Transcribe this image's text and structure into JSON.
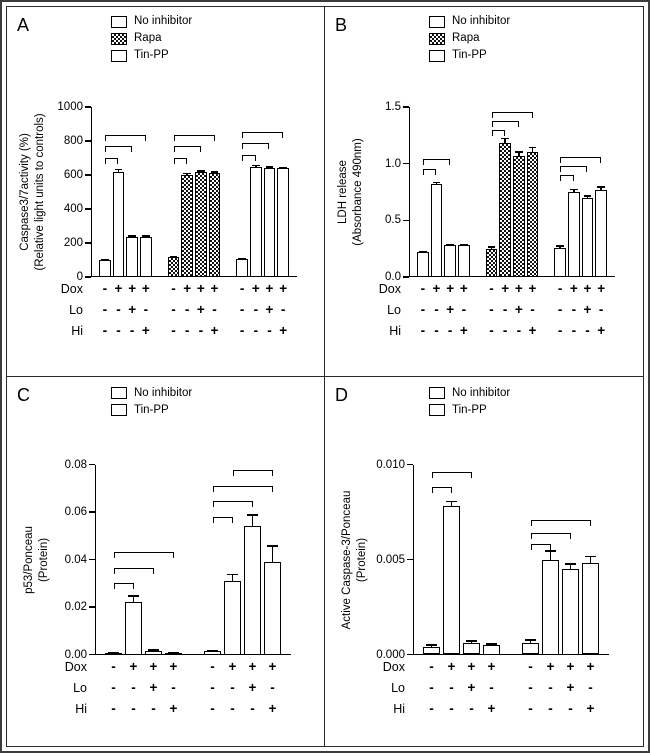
{
  "chart_data": [
    {
      "type": "bar",
      "panel": "A",
      "ylabel": "Caspase3/7activity (%)",
      "ylabel2": "(Relative light units to controls)",
      "ylim": [
        0,
        1000
      ],
      "yticks": [
        0,
        200,
        400,
        600,
        800,
        1000
      ],
      "ytick_labels": [
        "0",
        "200",
        "400",
        "600",
        "800",
        "1000"
      ],
      "legend": [
        {
          "label": "No inhibitor",
          "pattern": "white"
        },
        {
          "label": "Rapa",
          "pattern": "checker"
        },
        {
          "label": "Tin-PP",
          "pattern": "diagonal"
        }
      ],
      "groups": [
        {
          "name": "No inhibitor",
          "pattern": "white",
          "values": [
            100,
            620,
            235,
            235
          ],
          "errors": [
            8,
            18,
            10,
            10
          ]
        },
        {
          "name": "Rapa",
          "pattern": "checker",
          "values": [
            115,
            598,
            615,
            610
          ],
          "errors": [
            8,
            15,
            12,
            12
          ]
        },
        {
          "name": "Tin-PP",
          "pattern": "diagonal",
          "values": [
            105,
            650,
            643,
            640
          ],
          "errors": [
            6,
            10,
            8,
            8
          ]
        }
      ],
      "x_rows": [
        {
          "label": "Dox",
          "symbols": [
            "-",
            "+",
            "+",
            "+",
            "-",
            "+",
            "+",
            "+",
            "-",
            "+",
            "+",
            "+"
          ]
        },
        {
          "label": "Lo",
          "symbols": [
            "-",
            "-",
            "+",
            "-",
            "-",
            "-",
            "+",
            "-",
            "-",
            "-",
            "+",
            "-"
          ]
        },
        {
          "label": "Hi",
          "symbols": [
            "-",
            "-",
            "-",
            "+",
            "-",
            "-",
            "-",
            "+",
            "-",
            "-",
            "-",
            "+"
          ]
        }
      ],
      "brackets": [
        {
          "from": 0,
          "to": 1,
          "y": 700
        },
        {
          "from": 0,
          "to": 2,
          "y": 768
        },
        {
          "from": 0,
          "to": 3,
          "y": 836
        },
        {
          "from": 4,
          "to": 5,
          "y": 700
        },
        {
          "from": 4,
          "to": 6,
          "y": 768
        },
        {
          "from": 4,
          "to": 7,
          "y": 836
        },
        {
          "from": 8,
          "to": 9,
          "y": 718
        },
        {
          "from": 8,
          "to": 10,
          "y": 786
        },
        {
          "from": 8,
          "to": 11,
          "y": 854
        }
      ]
    },
    {
      "type": "bar",
      "panel": "B",
      "ylabel": "LDH release",
      "ylabel2": "(Absorbance 490nm)",
      "ylim": [
        0,
        1.5
      ],
      "yticks": [
        0,
        0.5,
        1.0,
        1.5
      ],
      "ytick_labels": [
        "0.0",
        "0.5",
        "1.0",
        "1.5"
      ],
      "legend": [
        {
          "label": "No inhibitor",
          "pattern": "white"
        },
        {
          "label": "Rapa",
          "pattern": "checker"
        },
        {
          "label": "Tin-PP",
          "pattern": "diagonal"
        }
      ],
      "groups": [
        {
          "name": "No inhibitor",
          "pattern": "white",
          "values": [
            0.22,
            0.82,
            0.28,
            0.28
          ],
          "errors": [
            0.01,
            0.02,
            0.015,
            0.015
          ]
        },
        {
          "name": "Rapa",
          "pattern": "checker",
          "values": [
            0.25,
            1.18,
            1.07,
            1.1
          ],
          "errors": [
            0.02,
            0.05,
            0.04,
            0.05
          ]
        },
        {
          "name": "Tin-PP",
          "pattern": "diagonal",
          "values": [
            0.26,
            0.75,
            0.7,
            0.77
          ],
          "errors": [
            0.02,
            0.03,
            0.02,
            0.03
          ]
        }
      ],
      "x_rows": [
        {
          "label": "Dox",
          "symbols": [
            "-",
            "+",
            "+",
            "+",
            "-",
            "+",
            "+",
            "+",
            "-",
            "+",
            "+",
            "+"
          ]
        },
        {
          "label": "Lo",
          "symbols": [
            "-",
            "-",
            "+",
            "-",
            "-",
            "-",
            "+",
            "-",
            "-",
            "-",
            "+",
            "-"
          ]
        },
        {
          "label": "Hi",
          "symbols": [
            "-",
            "-",
            "-",
            "+",
            "-",
            "-",
            "-",
            "+",
            "-",
            "-",
            "-",
            "+"
          ]
        }
      ],
      "brackets": [
        {
          "from": 0,
          "to": 1,
          "y": 0.95
        },
        {
          "from": 0,
          "to": 2,
          "y": 1.04
        },
        {
          "from": 4,
          "to": 5,
          "y": 1.3
        },
        {
          "from": 4,
          "to": 6,
          "y": 1.38
        },
        {
          "from": 4,
          "to": 7,
          "y": 1.46
        },
        {
          "from": 8,
          "to": 9,
          "y": 0.9
        },
        {
          "from": 8,
          "to": 10,
          "y": 0.98
        },
        {
          "from": 8,
          "to": 11,
          "y": 1.06
        }
      ]
    },
    {
      "type": "bar",
      "panel": "C",
      "ylabel": "p53/Ponceau",
      "ylabel2": "(Protein)",
      "ylim": [
        0,
        0.08
      ],
      "yticks": [
        0,
        0.02,
        0.04,
        0.06,
        0.08
      ],
      "ytick_labels": [
        "0.00",
        "0.02",
        "0.04",
        "0.06",
        "0.08"
      ],
      "legend": [
        {
          "label": "No inhibitor",
          "pattern": "white"
        },
        {
          "label": "Tin-PP",
          "pattern": "diagonal"
        }
      ],
      "groups": [
        {
          "name": "No inhibitor",
          "pattern": "white",
          "values": [
            0.0006,
            0.022,
            0.0015,
            0.0008
          ],
          "errors": [
            0.0003,
            0.003,
            0.0008,
            0.0004
          ]
        },
        {
          "name": "Tin-PP",
          "pattern": "diagonal",
          "values": [
            0.0015,
            0.031,
            0.054,
            0.039
          ],
          "errors": [
            0.0005,
            0.003,
            0.005,
            0.007
          ]
        }
      ],
      "x_rows": [
        {
          "label": "Dox",
          "symbols": [
            "-",
            "+",
            "+",
            "+",
            "-",
            "+",
            "+",
            "+"
          ]
        },
        {
          "label": "Lo",
          "symbols": [
            "-",
            "-",
            "+",
            "-",
            "-",
            "-",
            "+",
            "-"
          ]
        },
        {
          "label": "Hi",
          "symbols": [
            "-",
            "-",
            "-",
            "+",
            "-",
            "-",
            "-",
            "+"
          ]
        }
      ],
      "brackets": [
        {
          "from": 0,
          "to": 1,
          "y": 0.03
        },
        {
          "from": 0,
          "to": 2,
          "y": 0.0365
        },
        {
          "from": 0,
          "to": 3,
          "y": 0.043
        },
        {
          "from": 4,
          "to": 5,
          "y": 0.058
        },
        {
          "from": 4,
          "to": 6,
          "y": 0.0645
        },
        {
          "from": 4,
          "to": 7,
          "y": 0.071
        },
        {
          "from": 5,
          "to": 7,
          "y": 0.0775
        }
      ]
    },
    {
      "type": "bar",
      "panel": "D",
      "ylabel": "Active Caspase-3/Ponceau",
      "ylabel2": "(Protein)",
      "ylim": [
        0,
        0.01
      ],
      "yticks": [
        0,
        0.005,
        0.01
      ],
      "ytick_labels": [
        "0.000",
        "0.005",
        "0.010"
      ],
      "legend": [
        {
          "label": "No inhibitor",
          "pattern": "white"
        },
        {
          "label": "Tin-PP",
          "pattern": "diagonal"
        }
      ],
      "groups": [
        {
          "name": "No inhibitor",
          "pattern": "white",
          "values": [
            0.0004,
            0.0078,
            0.0006,
            0.0005
          ],
          "errors": [
            0.00015,
            0.0003,
            0.00015,
            0.0001
          ]
        },
        {
          "name": "Tin-PP",
          "pattern": "diagonal",
          "values": [
            0.0006,
            0.005,
            0.0045,
            0.0048
          ],
          "errors": [
            0.0002,
            0.0005,
            0.0003,
            0.0004
          ]
        }
      ],
      "x_rows": [
        {
          "label": "Dox",
          "symbols": [
            "-",
            "+",
            "+",
            "+",
            "-",
            "+",
            "+",
            "+"
          ]
        },
        {
          "label": "Lo",
          "symbols": [
            "-",
            "-",
            "+",
            "-",
            "-",
            "-",
            "+",
            "-"
          ]
        },
        {
          "label": "Hi",
          "symbols": [
            "-",
            "-",
            "-",
            "+",
            "-",
            "-",
            "-",
            "+"
          ]
        }
      ],
      "brackets": [
        {
          "from": 0,
          "to": 1,
          "y": 0.0088
        },
        {
          "from": 0,
          "to": 2,
          "y": 0.0096
        },
        {
          "from": 4,
          "to": 5,
          "y": 0.0058
        },
        {
          "from": 4,
          "to": 6,
          "y": 0.0064
        },
        {
          "from": 4,
          "to": 7,
          "y": 0.0071
        }
      ]
    }
  ]
}
